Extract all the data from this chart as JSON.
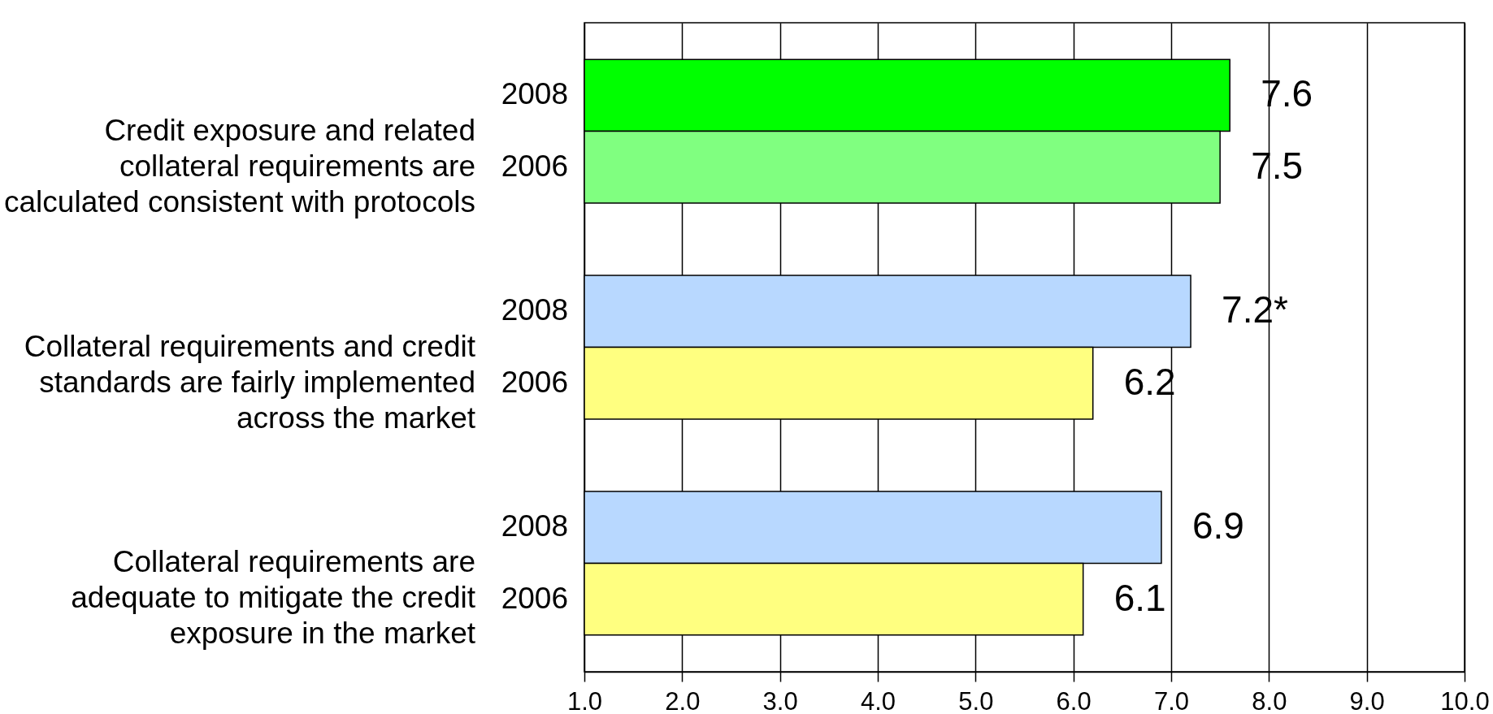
{
  "chart_data": {
    "type": "bar",
    "orientation": "horizontal",
    "categories": [
      "Credit exposure and related collateral requirements are calculated consistent with protocols",
      "Collateral requirements and credit standards are fairly implemented across the market",
      "Collateral requirements are adequate to mitigate the credit exposure in the market"
    ],
    "series": [
      {
        "name": "2008",
        "colors": [
          "#00ff00",
          "#b8d8ff",
          "#b8d8ff"
        ],
        "values": [
          7.6,
          7.2,
          6.9
        ],
        "value_labels": [
          "7.6",
          "7.2*",
          "6.9"
        ]
      },
      {
        "name": "2006",
        "colors": [
          "#80ff80",
          "#ffff80",
          "#ffff80"
        ],
        "values": [
          7.5,
          6.2,
          6.1
        ],
        "value_labels": [
          "7.5",
          "6.2",
          "6.1"
        ]
      }
    ],
    "xlim": [
      1,
      10
    ],
    "xticks": [
      {
        "value": 1,
        "label": "1.0"
      },
      {
        "value": 2,
        "label": "2.0"
      },
      {
        "value": 3,
        "label": "3.0"
      },
      {
        "value": 4,
        "label": "4.0"
      },
      {
        "value": 5,
        "label": "5.0"
      },
      {
        "value": 6,
        "label": "6.0"
      },
      {
        "value": 7,
        "label": "7.0"
      },
      {
        "value": 8,
        "label": "8.0"
      },
      {
        "value": 9,
        "label": "9.0"
      },
      {
        "value": 10,
        "label": "10.0"
      }
    ],
    "grid": "x"
  }
}
